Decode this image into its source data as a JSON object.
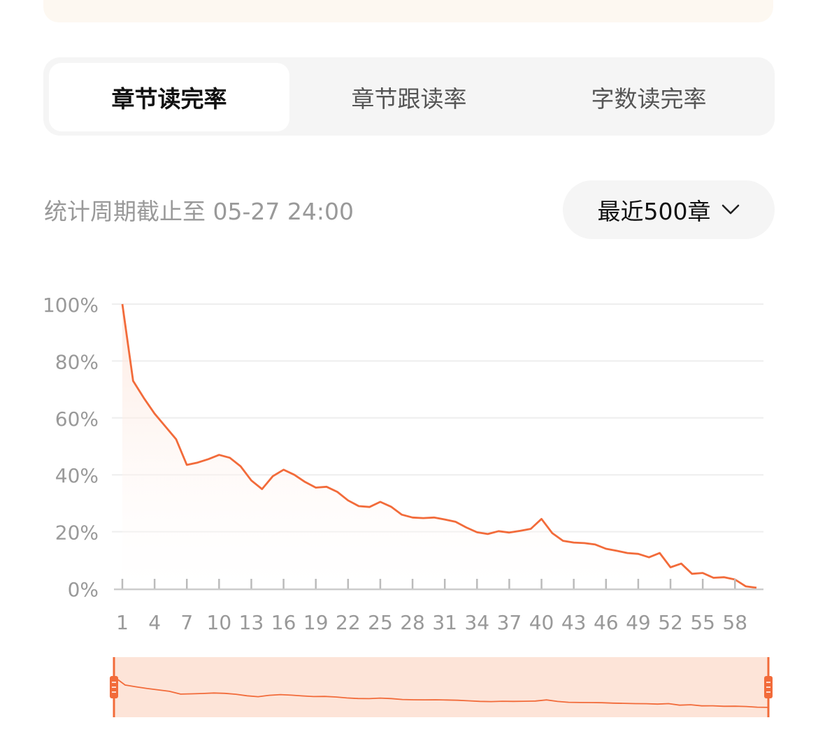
{
  "tabs": [
    {
      "label": "章节读完率",
      "active": true
    },
    {
      "label": "章节跟读率",
      "active": false
    },
    {
      "label": "字数读完率",
      "active": false
    }
  ],
  "period_text": "统计周期截止至 05-27 24:00",
  "dropdown": {
    "label": "最近500章",
    "icon": "chevron-down-icon"
  },
  "colors": {
    "line": "#f26b3a",
    "accent": "#f26b3a",
    "nav_fill": "#fde4d8"
  },
  "chart_data": {
    "type": "area",
    "x": [
      1,
      2,
      3,
      4,
      5,
      6,
      7,
      8,
      9,
      10,
      11,
      12,
      13,
      14,
      15,
      16,
      17,
      18,
      19,
      20,
      21,
      22,
      23,
      24,
      25,
      26,
      27,
      28,
      29,
      30,
      31,
      32,
      33,
      34,
      35,
      36,
      37,
      38,
      39,
      40,
      41,
      42,
      43,
      44,
      45,
      46,
      47,
      48,
      49,
      50,
      51,
      52,
      53,
      54,
      55,
      56,
      57,
      58,
      59,
      60
    ],
    "values": [
      100,
      73,
      67,
      61.5,
      57,
      52.5,
      43.5,
      44.3,
      45.5,
      47,
      46,
      43,
      38,
      35,
      39.5,
      41.8,
      40,
      37.5,
      35.5,
      35.8,
      34,
      31,
      29,
      28.7,
      30.5,
      28.8,
      26,
      25,
      24.8,
      25,
      24.3,
      23.5,
      21.5,
      19.8,
      19.2,
      20.2,
      19.7,
      20.3,
      21,
      24.5,
      19.5,
      16.8,
      16.2,
      16,
      15.5,
      14,
      13.3,
      12.5,
      12.2,
      11,
      12.5,
      7.5,
      8.8,
      5.2,
      5.5,
      3.8,
      4,
      3.2,
      0.8,
      0.3
    ],
    "xticks": [
      "1",
      "4",
      "7",
      "10",
      "13",
      "16",
      "19",
      "22",
      "25",
      "28",
      "31",
      "34",
      "37",
      "40",
      "43",
      "46",
      "49",
      "52",
      "55",
      "58"
    ],
    "yticks": [
      "0%",
      "20%",
      "40%",
      "60%",
      "80%",
      "100%"
    ],
    "ylim": [
      0,
      100
    ],
    "grid": true
  }
}
